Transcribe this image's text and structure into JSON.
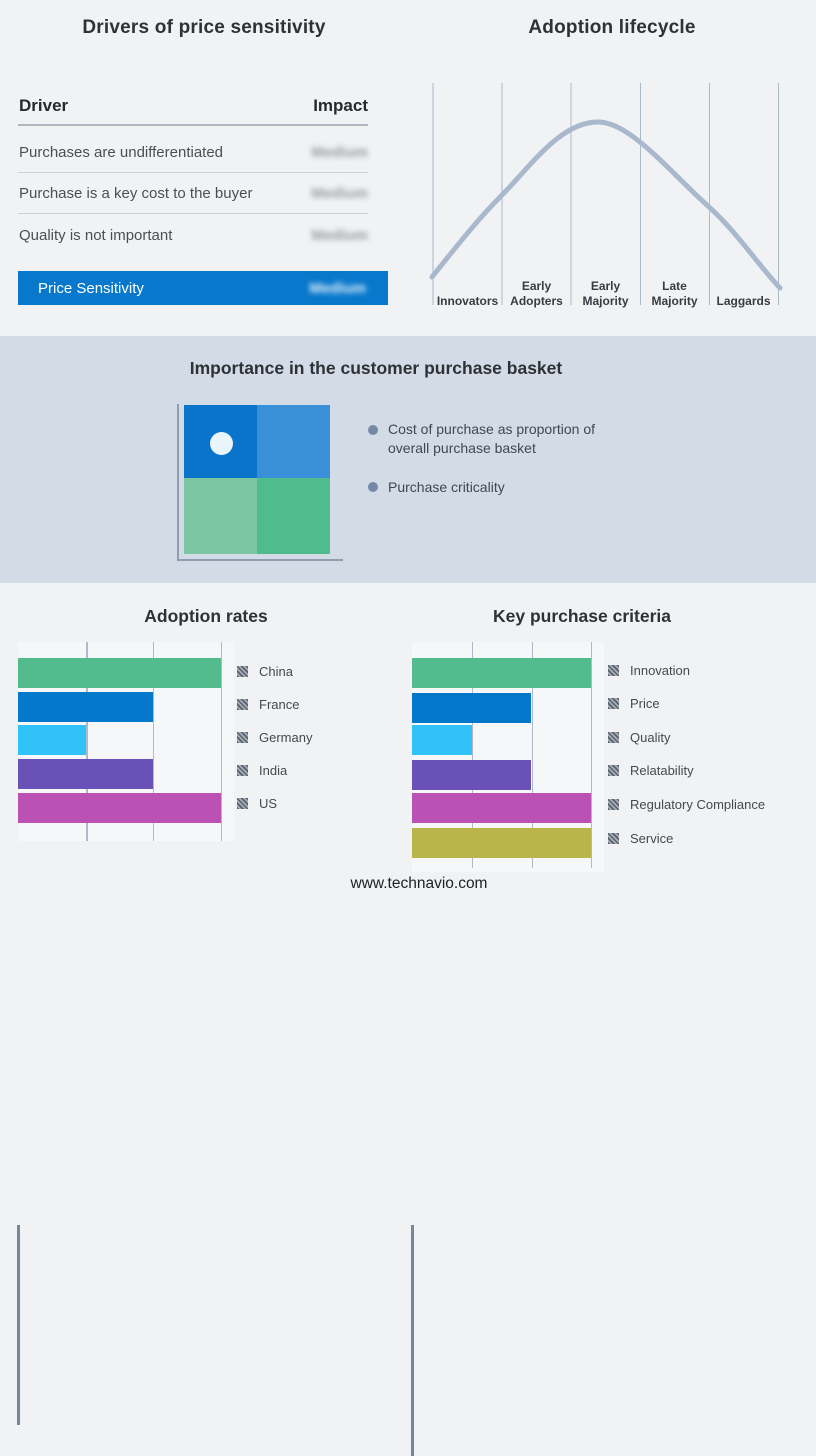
{
  "drivers_table": {
    "title": "Drivers of price sensitivity",
    "columns": {
      "driver": "Driver",
      "impact": "Impact"
    },
    "rows": [
      {
        "driver": "Purchases are undifferentiated",
        "impact": "Medium"
      },
      {
        "driver": "Purchase is a key cost to the buyer",
        "impact": "Medium"
      },
      {
        "driver": "Quality is not important",
        "impact": "Medium"
      }
    ],
    "highlight_row": {
      "driver": "Price Sensitivity",
      "impact": "Medium"
    },
    "highlight_color": "#0878cc"
  },
  "lifecycle": {
    "title": "Adoption lifecycle",
    "stages": [
      "Innovators",
      "Early Adopters",
      "Early Majority",
      "Late Majority",
      "Laggards"
    ],
    "curve_color": "#a9b8cd",
    "curve_shape": "bell curve rising from Innovators, peaking over Early Majority, falling through Laggards"
  },
  "purchase_basket": {
    "title": "Importance in the customer purchase basket",
    "bullets": [
      "Cost of purchase as proportion of overall purchase basket",
      "Purchase criticality"
    ],
    "quadrant_colors": [
      "#0a73ca",
      "#3a90d8",
      "#7dc6a4",
      "#4ebc8c"
    ],
    "dot_color": "#e9f5fb",
    "dot_position": "upper-left quadrant",
    "background": "#d3dce6"
  },
  "footer": {
    "url": "www.technavio.com"
  },
  "chart_data": [
    {
      "type": "bar",
      "orientation": "horizontal",
      "title": "Adoption rates",
      "categories": [
        "China",
        "France",
        "Germany",
        "India",
        "US"
      ],
      "values": [
        3,
        2,
        1,
        2,
        3
      ],
      "colors": [
        "#52bc8e",
        "#0478cb",
        "#30c2f9",
        "#6a51b8",
        "#ba52b6"
      ],
      "xlim": [
        0,
        3.2
      ],
      "gridlines_at": [
        1,
        2,
        3
      ],
      "value_axis_tick_labels": "none",
      "legend_position": "right",
      "legend_swatch_style": "gray diagonal hatch"
    },
    {
      "type": "bar",
      "orientation": "horizontal",
      "title": "Key purchase criteria",
      "categories": [
        "Innovation",
        "Price",
        "Quality",
        "Relatability",
        "Regulatory Compliance",
        "Service"
      ],
      "values": [
        3,
        2,
        1,
        2,
        3,
        3
      ],
      "colors": [
        "#52bc8e",
        "#0478cb",
        "#30c2f9",
        "#6a51b8",
        "#ba52b6",
        "#b9b54b"
      ],
      "xlim": [
        0,
        3.2
      ],
      "gridlines_at": [
        1,
        2,
        3
      ],
      "value_axis_tick_labels": "none",
      "legend_position": "right",
      "legend_swatch_style": "gray diagonal hatch"
    },
    {
      "type": "line",
      "title": "Adoption lifecycle",
      "x_categories": [
        "Innovators",
        "Early Adopters",
        "Early Majority",
        "Late Majority",
        "Laggards"
      ],
      "description": "unlabeled bell curve over five adoption stages, peak over Early Majority"
    }
  ]
}
